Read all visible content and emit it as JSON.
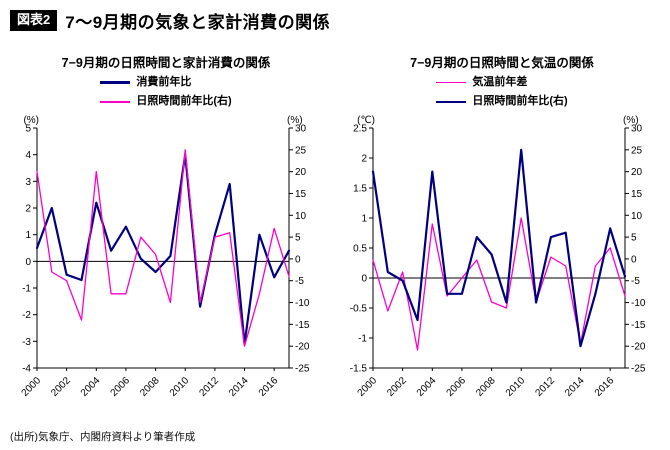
{
  "header": {
    "tag": "図表2",
    "title": "7〜9月期の気象と家計消費の関係"
  },
  "footer": {
    "source": "(出所)気象庁、内閣府資料より筆者作成"
  },
  "colors": {
    "navy": "#00007f",
    "magenta": "#ff00cc",
    "axis": "#000000"
  },
  "chart_data": [
    {
      "type": "line",
      "title": "7−9月期の日照時間と家計消費の関係",
      "x": [
        2000,
        2001,
        2002,
        2003,
        2004,
        2005,
        2006,
        2007,
        2008,
        2009,
        2010,
        2011,
        2012,
        2013,
        2014,
        2015,
        2016,
        2017
      ],
      "x_tick_labels": [
        "2000",
        "2002",
        "2004",
        "2006",
        "2008",
        "2010",
        "2012",
        "2014",
        "2016"
      ],
      "left_axis": {
        "label": "(%)",
        "min": -4,
        "max": 5,
        "ticks": [
          5,
          4,
          3,
          2,
          1,
          0,
          -1,
          -2,
          -3,
          -4
        ]
      },
      "right_axis": {
        "label": "(%)",
        "min": -25,
        "max": 30,
        "ticks": [
          30,
          25,
          20,
          15,
          10,
          5,
          0,
          -5,
          -10,
          -15,
          -20,
          -25
        ]
      },
      "legend_position": "top",
      "grid": false,
      "series": [
        {
          "name": "消費前年比",
          "axis": "left",
          "color": "navy",
          "width": 2.2,
          "values": [
            0.5,
            2.0,
            -0.5,
            -0.7,
            2.2,
            0.4,
            1.3,
            0.1,
            -0.4,
            0.2,
            4.0,
            -1.7,
            1.0,
            2.9,
            -3.1,
            1.0,
            -0.6,
            0.4
          ]
        },
        {
          "name": "日照時間前年比(右)",
          "axis": "right",
          "color": "magenta",
          "width": 1.3,
          "values": [
            20,
            -3,
            -5,
            -14,
            20,
            -8,
            -8,
            5,
            1,
            -10,
            25,
            -10,
            5,
            6,
            -20,
            -8,
            7,
            -4
          ]
        }
      ]
    },
    {
      "type": "line",
      "title": "7−9月期の日照時間と気温の関係",
      "x": [
        2000,
        2001,
        2002,
        2003,
        2004,
        2005,
        2006,
        2007,
        2008,
        2009,
        2010,
        2011,
        2012,
        2013,
        2014,
        2015,
        2016,
        2017
      ],
      "x_tick_labels": [
        "2000",
        "2002",
        "2004",
        "2006",
        "2008",
        "2010",
        "2012",
        "2014",
        "2016"
      ],
      "left_axis": {
        "label": "(℃)",
        "min": -1.5,
        "max": 2.5,
        "ticks": [
          2.5,
          2,
          1.5,
          1,
          0.5,
          0,
          -0.5,
          -1,
          -1.5
        ]
      },
      "right_axis": {
        "label": "(%)",
        "min": -25,
        "max": 30,
        "ticks": [
          30,
          25,
          20,
          15,
          10,
          5,
          0,
          -5,
          -10,
          -15,
          -20,
          -25
        ]
      },
      "legend_position": "top",
      "grid": false,
      "series": [
        {
          "name": "気温前年差",
          "axis": "left",
          "color": "magenta",
          "width": 1.3,
          "values": [
            0.3,
            -0.55,
            0.1,
            -1.2,
            0.9,
            -0.3,
            0.0,
            0.3,
            -0.4,
            -0.5,
            1.0,
            -0.4,
            0.35,
            0.2,
            -1.1,
            0.2,
            0.5,
            -0.3
          ]
        },
        {
          "name": "日照時間前年比(右)",
          "axis": "right",
          "color": "navy",
          "width": 2.2,
          "values": [
            20,
            -3,
            -5,
            -14,
            20,
            -8,
            -8,
            5,
            1,
            -10,
            25,
            -10,
            5,
            6,
            -20,
            -8,
            7,
            -4
          ]
        }
      ]
    }
  ]
}
